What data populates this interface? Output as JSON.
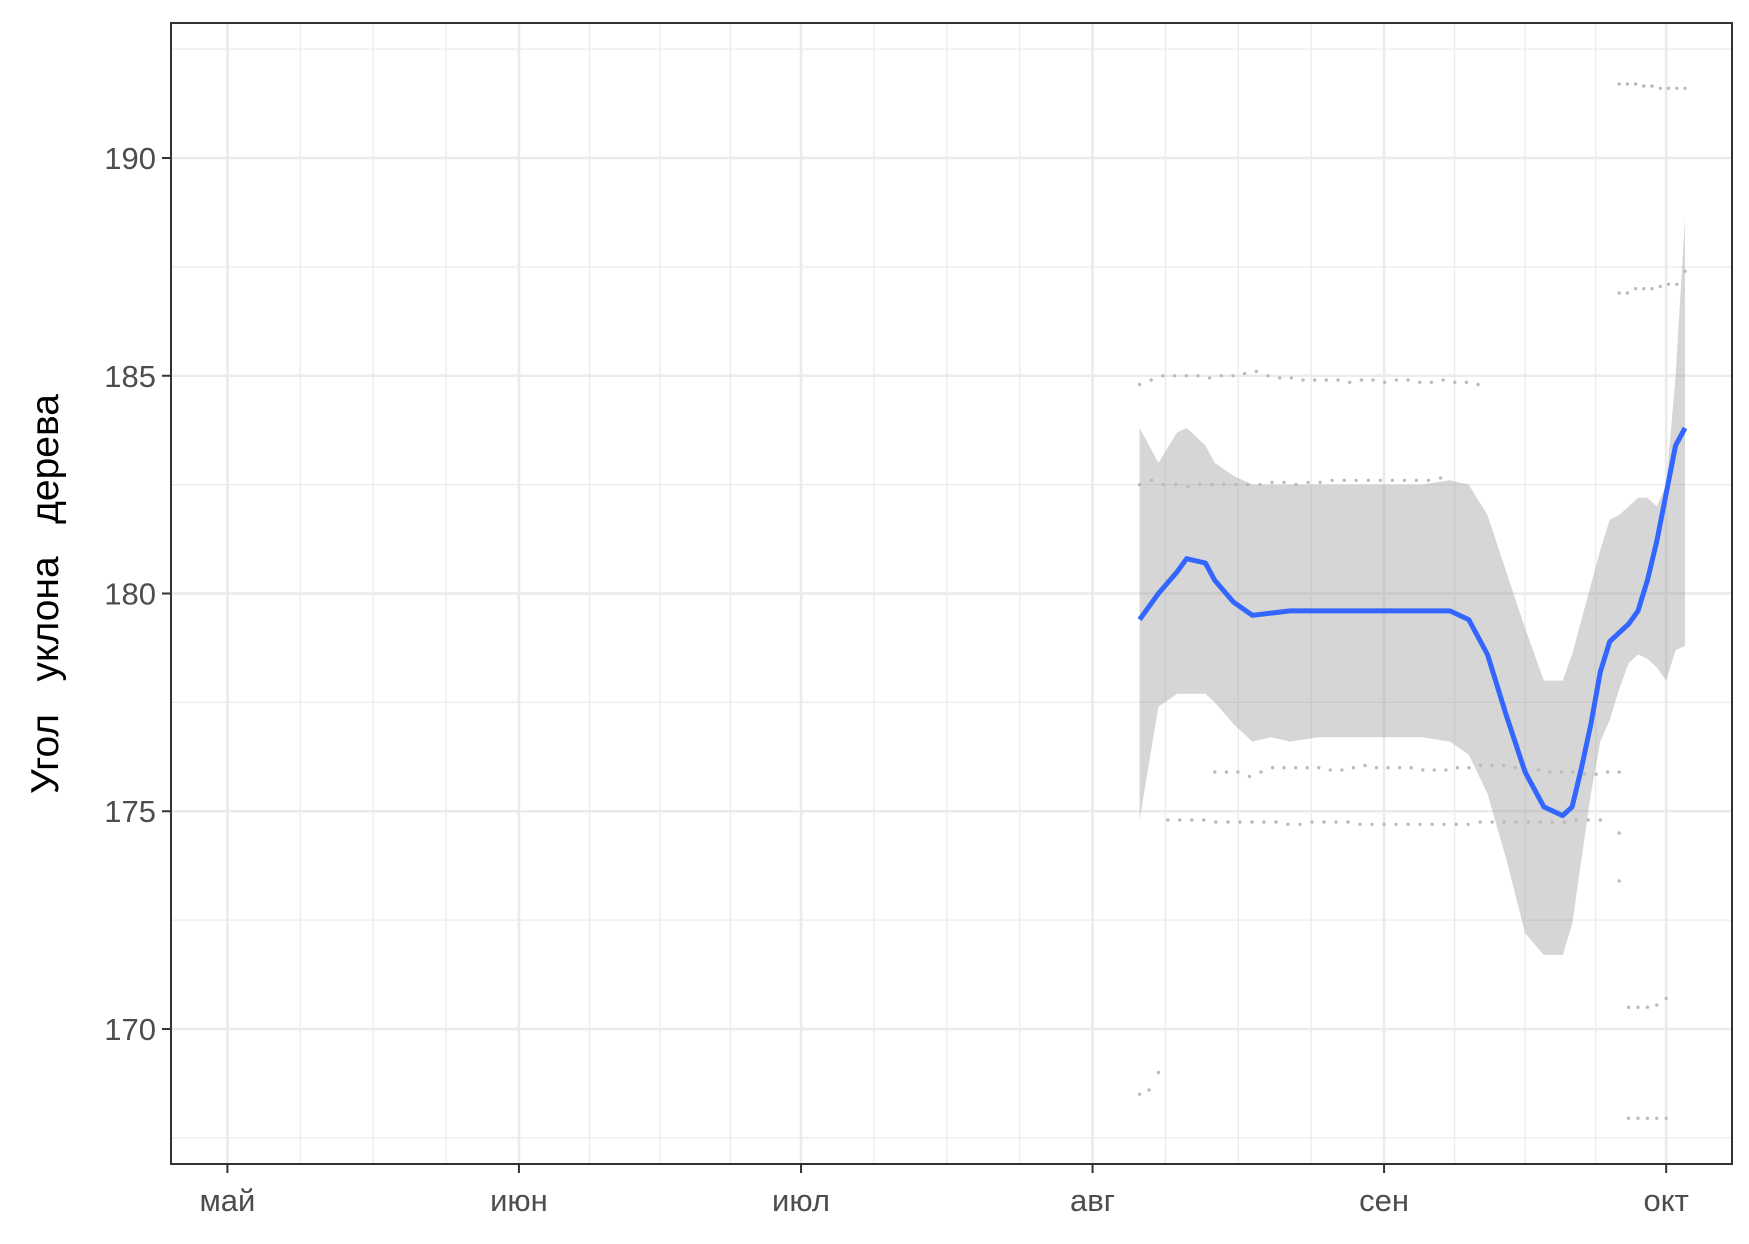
{
  "chart_data": {
    "type": "line",
    "title": "",
    "xlabel": "",
    "ylabel": "Угол   уклона   дерева",
    "x_ticks": [
      {
        "date": "2024-05-01",
        "label": "май"
      },
      {
        "date": "2024-06-01",
        "label": "июн"
      },
      {
        "date": "2024-07-01",
        "label": "июл"
      },
      {
        "date": "2024-08-01",
        "label": "авг"
      },
      {
        "date": "2024-09-01",
        "label": "сен"
      },
      {
        "date": "2024-10-01",
        "label": "окт"
      }
    ],
    "xlim": [
      "2024-04-25",
      "2024-10-08"
    ],
    "ylim": [
      166.9,
      193.1
    ],
    "y_ticks": [
      170,
      175,
      180,
      185,
      190
    ],
    "grid": true,
    "colors": {
      "smooth": "#3366FF",
      "ribbon": "#999999",
      "points": "#BBBBBB",
      "grid": "#EBEBEB",
      "panel_border": "#333333",
      "tick_text": "#4D4D4D"
    },
    "series": [
      {
        "kind": "smooth",
        "x": [
          "2024-08-06",
          "2024-08-08",
          "2024-08-10",
          "2024-08-11",
          "2024-08-13",
          "2024-08-14",
          "2024-08-16",
          "2024-08-18",
          "2024-08-20",
          "2024-08-22",
          "2024-08-25",
          "2024-08-29",
          "2024-09-02",
          "2024-09-05",
          "2024-09-08",
          "2024-09-10",
          "2024-09-12",
          "2024-09-14",
          "2024-09-16",
          "2024-09-18",
          "2024-09-20",
          "2024-09-21",
          "2024-09-22",
          "2024-09-23",
          "2024-09-24",
          "2024-09-25",
          "2024-09-26",
          "2024-09-27",
          "2024-09-28",
          "2024-09-29",
          "2024-09-30",
          "2024-10-01",
          "2024-10-02",
          "2024-10-03"
        ],
        "y": [
          179.4,
          180.0,
          180.5,
          180.8,
          180.7,
          180.3,
          179.8,
          179.5,
          179.55,
          179.6,
          179.6,
          179.6,
          179.6,
          179.6,
          179.6,
          179.4,
          178.6,
          177.2,
          175.9,
          175.1,
          174.9,
          175.1,
          176.0,
          177.0,
          178.2,
          178.9,
          179.1,
          179.3,
          179.6,
          180.3,
          181.2,
          182.3,
          183.4,
          183.8
        ],
        "lower": [
          174.8,
          177.4,
          177.7,
          177.7,
          177.7,
          177.5,
          177.0,
          176.6,
          176.7,
          176.6,
          176.7,
          176.7,
          176.7,
          176.7,
          176.6,
          176.3,
          175.4,
          173.9,
          172.2,
          171.7,
          171.7,
          172.4,
          173.9,
          175.4,
          176.6,
          177.1,
          177.8,
          178.4,
          178.6,
          178.5,
          178.3,
          178.0,
          178.7,
          178.8
        ],
        "upper": [
          183.8,
          183.0,
          183.7,
          183.8,
          183.4,
          183.0,
          182.7,
          182.5,
          182.5,
          182.5,
          182.5,
          182.5,
          182.5,
          182.5,
          182.6,
          182.5,
          181.8,
          180.5,
          179.2,
          178.0,
          178.0,
          178.6,
          179.4,
          180.2,
          181.0,
          181.7,
          181.8,
          182.0,
          182.2,
          182.2,
          182.0,
          182.5,
          185.0,
          188.6
        ]
      },
      {
        "kind": "points",
        "tracks": [
          {
            "x_start": "2024-08-06",
            "x_end": "2024-09-11",
            "y": [
              184.8,
              184.9,
              185.0,
              185.0,
              185.0,
              185.0,
              184.95,
              185.0,
              185.0,
              185.05,
              185.1,
              185.0,
              184.95,
              184.95,
              184.9,
              184.9,
              184.9,
              184.9,
              184.85,
              184.9,
              184.9,
              184.85,
              184.9,
              184.9,
              184.85,
              184.85,
              184.9,
              184.85,
              184.85,
              184.8
            ]
          },
          {
            "x_start": "2024-08-06",
            "x_end": "2024-09-07",
            "y": [
              182.5,
              182.6,
              182.5,
              182.5,
              182.45,
              182.5,
              182.5,
              182.5,
              182.5,
              182.5,
              182.5,
              182.55,
              182.55,
              182.5,
              182.55,
              182.55,
              182.6,
              182.6,
              182.6,
              182.6,
              182.6,
              182.6,
              182.6,
              182.6,
              182.6,
              182.65
            ]
          },
          {
            "x_start": "2024-08-14",
            "x_end": "2024-09-26",
            "y": [
              175.9,
              175.9,
              175.9,
              175.8,
              175.9,
              176.0,
              176.0,
              176.0,
              176.0,
              176.0,
              175.95,
              175.95,
              176.0,
              176.05,
              176.0,
              176.0,
              176.0,
              176.0,
              175.95,
              175.95,
              175.95,
              176.0,
              176.0,
              176.05,
              176.05,
              176.05,
              176.0,
              175.95,
              175.95,
              175.9,
              175.9,
              175.9,
              175.85,
              175.85,
              175.9,
              175.9
            ]
          },
          {
            "x_start": "2024-08-09",
            "x_end": "2024-09-24",
            "y": [
              174.8,
              174.8,
              174.8,
              174.8,
              174.75,
              174.75,
              174.75,
              174.75,
              174.75,
              174.75,
              174.7,
              174.7,
              174.75,
              174.75,
              174.75,
              174.75,
              174.7,
              174.7,
              174.7,
              174.7,
              174.7,
              174.7,
              174.7,
              174.7,
              174.7,
              174.7,
              174.75,
              174.75,
              174.75,
              174.75,
              174.75,
              174.75,
              174.75,
              174.75,
              174.8,
              174.8,
              174.8
            ]
          },
          {
            "x_start": "2024-09-26",
            "x_end": "2024-10-03",
            "y": [
              191.7,
              191.7,
              191.7,
              191.65,
              191.65,
              191.6,
              191.6,
              191.6,
              191.6
            ]
          },
          {
            "x_start": "2024-09-26",
            "x_end": "2024-10-03",
            "y": [
              186.9,
              186.9,
              187.0,
              187.0,
              187.0,
              187.05,
              187.1,
              187.1,
              187.4
            ]
          },
          {
            "x_start": "2024-09-26",
            "x_end": "2024-09-26",
            "y": [
              174.5
            ]
          },
          {
            "x_start": "2024-09-26",
            "x_end": "2024-09-26",
            "y": [
              173.4
            ]
          },
          {
            "x_start": "2024-09-27",
            "x_end": "2024-10-01",
            "y": [
              170.5,
              170.5,
              170.5,
              170.55,
              170.7
            ]
          },
          {
            "x_start": "2024-09-27",
            "x_end": "2024-10-01",
            "y": [
              167.95,
              167.95,
              167.95,
              167.95,
              167.95
            ]
          },
          {
            "x_start": "2024-08-06",
            "x_end": "2024-08-08",
            "y": [
              168.5,
              168.6,
              169.0
            ]
          }
        ]
      }
    ]
  }
}
